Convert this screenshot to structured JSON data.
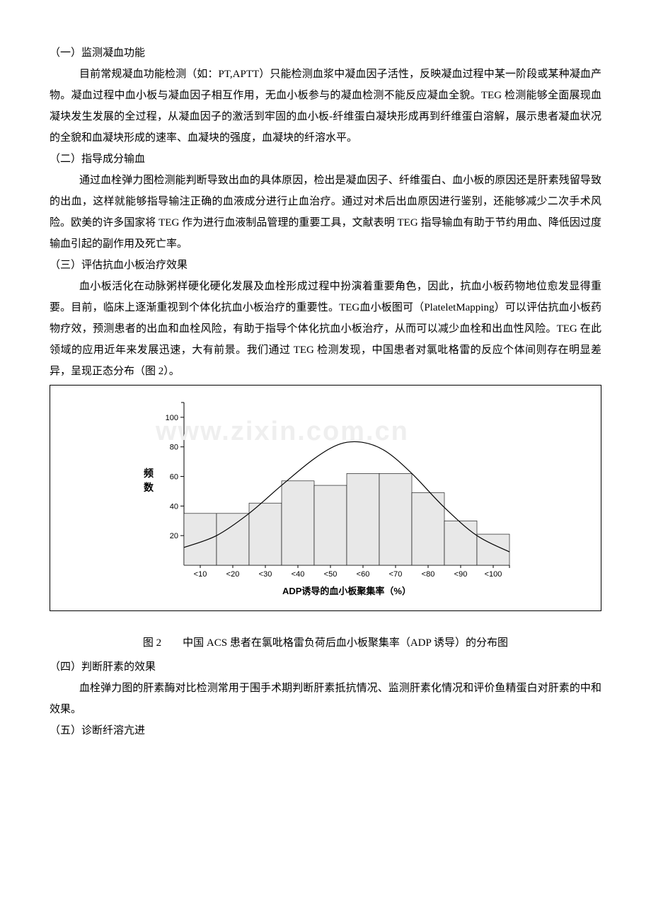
{
  "watermark": "www.zixin.com.cn",
  "sections": {
    "s1": {
      "heading": "（一）监测凝血功能",
      "body": "目前常规凝血功能检测（如：PT,APTT）只能检测血浆中凝血因子活性，反映凝血过程中某一阶段或某种凝血产物。凝血过程中血小板与凝血因子相互作用，无血小板参与的凝血检测不能反应凝血全貌。TEG 检测能够全面展现血凝块发生发展的全过程，从凝血因子的激活到牢固的血小板-纤维蛋白凝块形成再到纤维蛋白溶解，展示患者凝血状况的全貌和血凝块形成的速率、血凝块的强度，血凝块的纤溶水平。"
    },
    "s2": {
      "heading": "（二）指导成分输血",
      "body": "通过血栓弹力图检测能判断导致出血的具体原因，检出是凝血因子、纤维蛋白、血小板的原因还是肝素残留导致的出血，这样就能够指导输注正确的血液成分进行止血治疗。通过对术后出血原因进行鉴别，还能够减少二次手术风险。欧美的许多国家将 TEG 作为进行血液制品管理的重要工具，文献表明 TEG 指导输血有助于节约用血、降低因过度输血引起的副作用及死亡率。"
    },
    "s3": {
      "heading": "（三）评估抗血小板治疗效果",
      "body": "血小板活化在动脉粥样硬化硬化发展及血栓形成过程中扮演着重要角色，因此，抗血小板药物地位愈发显得重要。目前，临床上逐渐重视到个体化抗血小板治疗的重要性。TEG血小板图可（PlateletMapping）可以评估抗血小板药物疗效，预测患者的出血和血栓风险，有助于指导个体化抗血小板治疗，从而可以减少血栓和出血性风险。TEG 在此领域的应用近年来发展迅速，大有前景。我们通过 TEG 检测发现，中国患者对氯吡格雷的反应个体间则存在明显差异，呈现正态分布（图 2）。"
    },
    "s4": {
      "heading": "（四）判断肝素的效果",
      "body": "血栓弹力图的肝素酶对比检测常用于围手术期判断肝素抵抗情况、监测肝素化情况和评价鱼精蛋白对肝素的中和效果。"
    },
    "s5": {
      "heading": "（五）诊断纤溶亢进"
    }
  },
  "chart": {
    "type": "histogram-with-curve",
    "caption": "图 2　　中国 ACS 患者在氯吡格雷负荷后血小板聚集率（ADP 诱导）的分布图",
    "xlabel": "ADP诱导的血小板聚集率（%）",
    "ylabel": "频数",
    "categories": [
      "<10",
      "<20",
      "<30",
      "<40",
      "<50",
      "<60",
      "<70",
      "<80",
      "<90",
      "<100"
    ],
    "values": [
      35,
      35,
      42,
      57,
      54,
      62,
      62,
      49,
      30,
      21
    ],
    "ylim": [
      0,
      110
    ],
    "yticks": [
      20,
      40,
      60,
      80,
      100
    ],
    "bar_fill": "#e8e8e8",
    "bar_stroke": "#000000",
    "bar_stroke_width": 0.6,
    "curve_color": "#000000",
    "curve_width": 1.2,
    "curve_points": [
      [
        0,
        12
      ],
      [
        1,
        20
      ],
      [
        2,
        35
      ],
      [
        3,
        54
      ],
      [
        4,
        72
      ],
      [
        4.8,
        82
      ],
      [
        5.5,
        83
      ],
      [
        6.2,
        77
      ],
      [
        7,
        62
      ],
      [
        8,
        39
      ],
      [
        9,
        20
      ],
      [
        10,
        9
      ]
    ],
    "background_color": "#ffffff",
    "axis_color": "#000000",
    "tick_fontsize": 11,
    "label_fontsize": 13,
    "ylabel_fontsize": 14
  }
}
